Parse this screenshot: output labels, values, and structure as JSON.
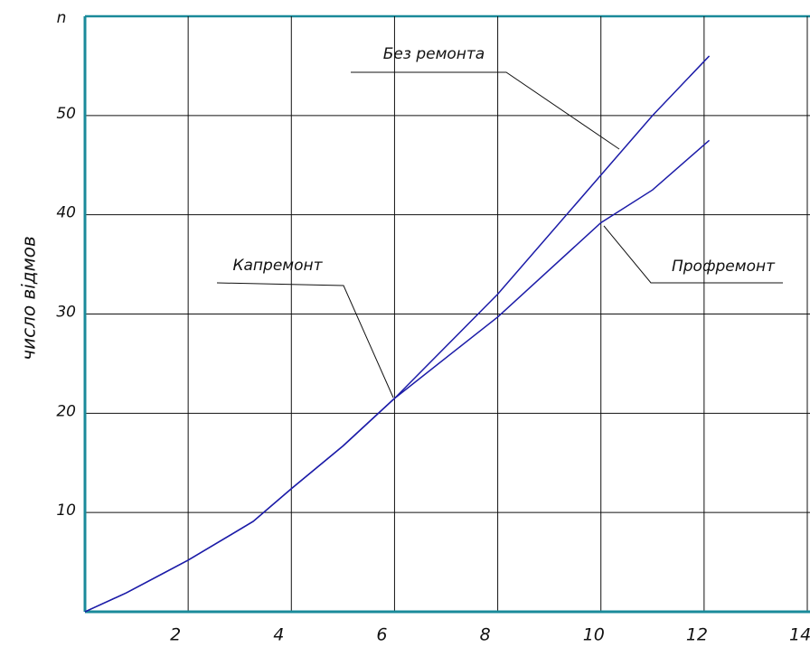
{
  "chart_data": {
    "type": "line",
    "y_label": "число відмов",
    "y_unit": "n",
    "x": [
      0,
      0.8,
      2,
      3.26,
      4,
      5,
      6,
      8,
      10,
      11,
      12.1
    ],
    "series": [
      {
        "name": "Без ремонта",
        "color": "#1c1ca8",
        "values": [
          0,
          1.9,
          5.2,
          9.1,
          12.4,
          16.7,
          21.5,
          32,
          44,
          50,
          56
        ]
      },
      {
        "name": "Профремонт",
        "color": "#1c1ca8",
        "values": [
          0,
          1.9,
          5.2,
          9.1,
          12.4,
          16.7,
          21.5,
          29.7,
          39.2,
          42.5,
          47.5
        ]
      }
    ],
    "annotations": [
      {
        "text": "Капремонт"
      }
    ],
    "xlim": [
      0,
      14
    ],
    "xticks": [
      2,
      4,
      6,
      8,
      10,
      12,
      14
    ],
    "ylim": [
      0,
      60
    ],
    "yticks": [
      10,
      20,
      30,
      40,
      50,
      60
    ],
    "grid": true,
    "axis_color": "#1a8a9a"
  }
}
